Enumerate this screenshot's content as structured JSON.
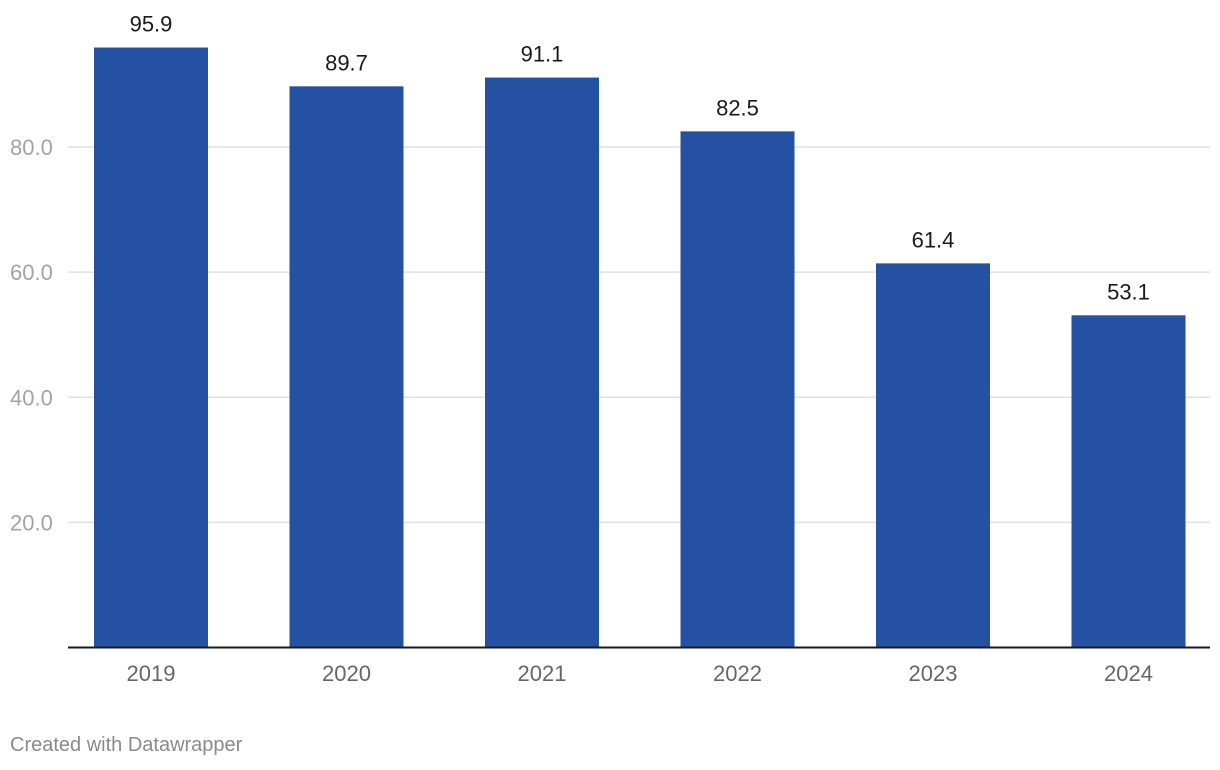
{
  "chart_data": {
    "type": "bar",
    "categories": [
      "2019",
      "2020",
      "2021",
      "2022",
      "2023",
      "2024"
    ],
    "values": [
      95.9,
      89.7,
      91.1,
      82.5,
      61.4,
      53.1
    ],
    "value_labels": [
      "95.9",
      "89.7",
      "91.1",
      "82.5",
      "61.4",
      "53.1"
    ],
    "y_ticks": [
      20,
      40,
      60,
      80
    ],
    "y_tick_labels": [
      "20.0",
      "40.0",
      "60.0",
      "80.0"
    ],
    "ylim": [
      0,
      100
    ],
    "grid": true,
    "bar_color": "#2451a2",
    "title": "",
    "xlabel": "",
    "ylabel": ""
  },
  "footer": {
    "credit": "Created with Datawrapper"
  }
}
